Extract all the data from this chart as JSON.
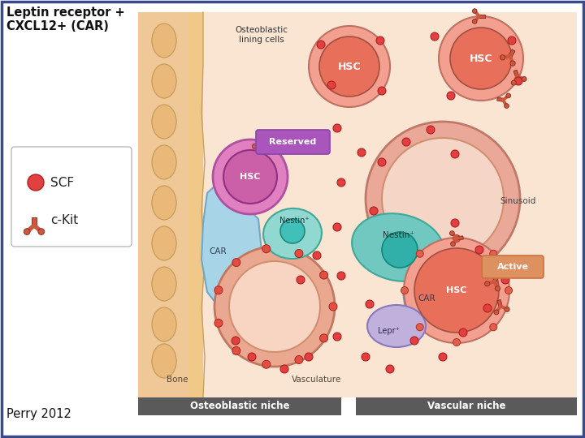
{
  "title": "Leptin receptor +\nCXCL12+ (CAR)",
  "citation": "Perry 2012",
  "bg_color": "#FFFFFF",
  "diagram_bg": "#FAE5D3",
  "border_color": "#3B4A8C",
  "osteoblastic_label": "Osteoblastic niche",
  "vascular_label": "Vascular niche",
  "bone_label": "Bone",
  "vasculature_label": "Vasculature",
  "sinusoid_label": "Sinusoid",
  "osteoblastic_lining": "Osteoblastic\nlining cells",
  "reserved_label": "Reserved",
  "active_label": "Active",
  "legend_scf": "SCF",
  "legend_ckit": "c-Kit",
  "hsc_color": "#E8705A",
  "hsc_outer_color": "#F4A090",
  "car_color": "#A8D4E8",
  "car_color2": "#90C0DC",
  "nestin_small_color": "#90D8D0",
  "nestin_large_color": "#70C8C0",
  "lepr_color": "#C0B0DC",
  "pink_hsc_color": "#E080C0",
  "pink_hsc_inner": "#CC60A8",
  "sinusoid_outer": "#EAA898",
  "sinusoid_inner": "#F8D0C0",
  "bone_color": "#F0C898",
  "osteocyte_color": "#EAB878",
  "scf_color": "#E04040",
  "ckit_color": "#CC5840",
  "bar_color": "#5A5A5A",
  "bar_text_color": "#FFFFFF",
  "reserved_bg": "#AA55BB",
  "active_bg": "#DD9060",
  "active_border": "#CC7040"
}
